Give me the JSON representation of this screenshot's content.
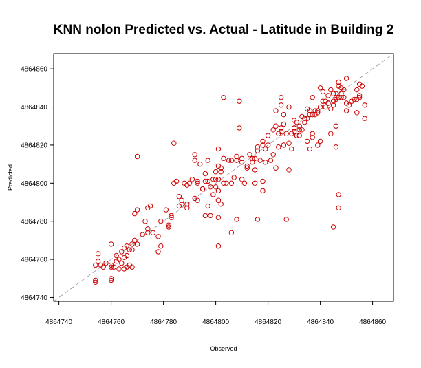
{
  "chart_data": {
    "type": "scatter",
    "title": "KNN  nolon Predicted vs. Actual - Latitude in Building 2",
    "xlabel": "Observed",
    "ylabel": "Predicted",
    "xlim": [
      4864738,
      4864868
    ],
    "ylim": [
      4864738,
      4864868
    ],
    "xticks": [
      4864740,
      4864760,
      4864780,
      4864800,
      4864820,
      4864840,
      4864860
    ],
    "yticks": [
      4864740,
      4864760,
      4864780,
      4864800,
      4864820,
      4864840,
      4864860
    ],
    "reference_line": "y = x",
    "grid": false,
    "marker": "open-circle",
    "point_color": "#cc0000",
    "line_color": "#9999aa",
    "points": [
      [
        4864754,
        4864749
      ],
      [
        4864754,
        4864748
      ],
      [
        4864754,
        4864757
      ],
      [
        4864755,
        4864759
      ],
      [
        4864755,
        4864763
      ],
      [
        4864756,
        4864757
      ],
      [
        4864757,
        4864756
      ],
      [
        4864758,
        4864758
      ],
      [
        4864760,
        4864750
      ],
      [
        4864760,
        4864749
      ],
      [
        4864760,
        4864757
      ],
      [
        4864760,
        4864756
      ],
      [
        4864760,
        4864768
      ],
      [
        4864761,
        4864756
      ],
      [
        4864762,
        4864759
      ],
      [
        4864762,
        4864762
      ],
      [
        4864763,
        4864755
      ],
      [
        4864763,
        4864760
      ],
      [
        4864764,
        4864764
      ],
      [
        4864764,
        4864758
      ],
      [
        4864765,
        4864766
      ],
      [
        4864765,
        4864761
      ],
      [
        4864765,
        4864755
      ],
      [
        4864766,
        4864767
      ],
      [
        4864766,
        4864762
      ],
      [
        4864766,
        4864756
      ],
      [
        4864767,
        4864765
      ],
      [
        4864767,
        4864757
      ],
      [
        4864768,
        4864768
      ],
      [
        4864768,
        4864765
      ],
      [
        4864768,
        4864756
      ],
      [
        4864769,
        4864770
      ],
      [
        4864769,
        4864784
      ],
      [
        4864770,
        4864786
      ],
      [
        4864770,
        4864768
      ],
      [
        4864770,
        4864814
      ],
      [
        4864772,
        4864773
      ],
      [
        4864773,
        4864780
      ],
      [
        4864774,
        4864787
      ],
      [
        4864774,
        4864776
      ],
      [
        4864774,
        4864774
      ],
      [
        4864775,
        4864788
      ],
      [
        4864776,
        4864774
      ],
      [
        4864778,
        4864764
      ],
      [
        4864778,
        4864772
      ],
      [
        4864779,
        4864767
      ],
      [
        4864779,
        4864780
      ],
      [
        4864781,
        4864786
      ],
      [
        4864782,
        4864777
      ],
      [
        4864782,
        4864778
      ],
      [
        4864783,
        4864782
      ],
      [
        4864783,
        4864783
      ],
      [
        4864784,
        4864800
      ],
      [
        4864784,
        4864821
      ],
      [
        4864785,
        4864801
      ],
      [
        4864786,
        4864788
      ],
      [
        4864786,
        4864793
      ],
      [
        4864787,
        4864791
      ],
      [
        4864787,
        4864789
      ],
      [
        4864788,
        4864800
      ],
      [
        4864789,
        4864787
      ],
      [
        4864789,
        4864789
      ],
      [
        4864789,
        4864799
      ],
      [
        4864790,
        4864800
      ],
      [
        4864791,
        4864802
      ],
      [
        4864792,
        4864792
      ],
      [
        4864792,
        4864812
      ],
      [
        4864792,
        4864815
      ],
      [
        4864793,
        4864801
      ],
      [
        4864793,
        4864800
      ],
      [
        4864793,
        4864791
      ],
      [
        4864794,
        4864810
      ],
      [
        4864795,
        4864797
      ],
      [
        4864795,
        4864797
      ],
      [
        4864796,
        4864805
      ],
      [
        4864796,
        4864801
      ],
      [
        4864796,
        4864783
      ],
      [
        4864797,
        4864812
      ],
      [
        4864797,
        4864788
      ],
      [
        4864797,
        4864801
      ],
      [
        4864798,
        4864783
      ],
      [
        4864798,
        4864798
      ],
      [
        4864799,
        4864794
      ],
      [
        4864799,
        4864802
      ],
      [
        4864800,
        4864806
      ],
      [
        4864800,
        4864798
      ],
      [
        4864800,
        4864802
      ],
      [
        4864801,
        4864796
      ],
      [
        4864801,
        4864818
      ],
      [
        4864801,
        4864809
      ],
      [
        4864801,
        4864802
      ],
      [
        4864801,
        4864791
      ],
      [
        4864801,
        4864767
      ],
      [
        4864801,
        4864782
      ],
      [
        4864802,
        4864808
      ],
      [
        4864802,
        4864806
      ],
      [
        4864802,
        4864789
      ],
      [
        4864803,
        4864845
      ],
      [
        4864803,
        4864800
      ],
      [
        4864803,
        4864813
      ],
      [
        4864804,
        4864800
      ],
      [
        4864805,
        4864812
      ],
      [
        4864806,
        4864774
      ],
      [
        4864806,
        4864812
      ],
      [
        4864806,
        4864800
      ],
      [
        4864807,
        4864803
      ],
      [
        4864808,
        4864781
      ],
      [
        4864808,
        4864812
      ],
      [
        4864808,
        4864814
      ],
      [
        4864809,
        4864843
      ],
      [
        4864809,
        4864829
      ],
      [
        4864810,
        4864811
      ],
      [
        4864810,
        4864802
      ],
      [
        4864810,
        4864813
      ],
      [
        4864811,
        4864800
      ],
      [
        4864812,
        4864808
      ],
      [
        4864812,
        4864809
      ],
      [
        4864813,
        4864815
      ],
      [
        4864814,
        4864811
      ],
      [
        4864814,
        4864813
      ],
      [
        4864815,
        4864800
      ],
      [
        4864815,
        4864813
      ],
      [
        4864815,
        4864807
      ],
      [
        4864816,
        4864817
      ],
      [
        4864816,
        4864781
      ],
      [
        4864816,
        4864819
      ],
      [
        4864817,
        4864812
      ],
      [
        4864818,
        4864820
      ],
      [
        4864818,
        4864822
      ],
      [
        4864818,
        4864796
      ],
      [
        4864818,
        4864801
      ],
      [
        4864819,
        4864811
      ],
      [
        4864819,
        4864818
      ],
      [
        4864820,
        4864820
      ],
      [
        4864820,
        4864825
      ],
      [
        4864821,
        4864812
      ],
      [
        4864822,
        4864828
      ],
      [
        4864822,
        4864815
      ],
      [
        4864823,
        4864830
      ],
      [
        4864823,
        4864808
      ],
      [
        4864823,
        4864838
      ],
      [
        4864824,
        4864826
      ],
      [
        4864824,
        4864819
      ],
      [
        4864825,
        4864845
      ],
      [
        4864825,
        4864841
      ],
      [
        4864825,
        4864829
      ],
      [
        4864825,
        4864827
      ],
      [
        4864826,
        4864836
      ],
      [
        4864826,
        4864831
      ],
      [
        4864826,
        4864820
      ],
      [
        4864827,
        4864781
      ],
      [
        4864827,
        4864826
      ],
      [
        4864828,
        4864821
      ],
      [
        4864828,
        4864840
      ],
      [
        4864828,
        4864807
      ],
      [
        4864829,
        4864818
      ],
      [
        4864829,
        4864826
      ],
      [
        4864830,
        4864833
      ],
      [
        4864830,
        4864827
      ],
      [
        4864830,
        4864829
      ],
      [
        4864831,
        4864832
      ],
      [
        4864831,
        4864825
      ],
      [
        4864832,
        4864828
      ],
      [
        4864832,
        4864825
      ],
      [
        4864832,
        4864830
      ],
      [
        4864833,
        4864835
      ],
      [
        4864833,
        4864828
      ],
      [
        4864834,
        4864832
      ],
      [
        4864834,
        4864834
      ],
      [
        4864835,
        4864834
      ],
      [
        4864835,
        4864822
      ],
      [
        4864835,
        4864839
      ],
      [
        4864836,
        4864836
      ],
      [
        4864836,
        4864818
      ],
      [
        4864836,
        4864838
      ],
      [
        4864837,
        4864836
      ],
      [
        4864837,
        4864826
      ],
      [
        4864837,
        4864824
      ],
      [
        4864837,
        4864845
      ],
      [
        4864838,
        4864836
      ],
      [
        4864838,
        4864838
      ],
      [
        4864839,
        4864838
      ],
      [
        4864839,
        4864837
      ],
      [
        4864839,
        4864820
      ],
      [
        4864840,
        4864840
      ],
      [
        4864840,
        4864850
      ],
      [
        4864840,
        4864822
      ],
      [
        4864841,
        4864848
      ],
      [
        4864841,
        4864843
      ],
      [
        4864842,
        4864840
      ],
      [
        4864842,
        4864843
      ],
      [
        4864843,
        4864842
      ],
      [
        4864843,
        4864846
      ],
      [
        4864843,
        4864842
      ],
      [
        4864844,
        4864826
      ],
      [
        4864844,
        4864849
      ],
      [
        4864844,
        4864839
      ],
      [
        4864845,
        4864777
      ],
      [
        4864845,
        4864841
      ],
      [
        4864845,
        4864847
      ],
      [
        4864845,
        4864843
      ],
      [
        4864846,
        4864844
      ],
      [
        4864846,
        4864819
      ],
      [
        4864846,
        4864830
      ],
      [
        4864846,
        4864845
      ],
      [
        4864846,
        4864847
      ],
      [
        4864847,
        4864853
      ],
      [
        4864847,
        4864845
      ],
      [
        4864847,
        4864851
      ],
      [
        4864847,
        4864794
      ],
      [
        4864847,
        4864787
      ],
      [
        4864848,
        4864850
      ],
      [
        4864848,
        4864847
      ],
      [
        4864848,
        4864845
      ],
      [
        4864849,
        4864849
      ],
      [
        4864849,
        4864845
      ],
      [
        4864850,
        4864855
      ],
      [
        4864850,
        4864838
      ],
      [
        4864850,
        4864842
      ],
      [
        4864851,
        4864841
      ],
      [
        4864852,
        4864843
      ],
      [
        4864853,
        4864844
      ],
      [
        4864854,
        4864844
      ],
      [
        4864854,
        4864849
      ],
      [
        4864854,
        4864837
      ],
      [
        4864855,
        4864845
      ],
      [
        4864855,
        4864852
      ],
      [
        4864855,
        4864846
      ],
      [
        4864856,
        4864851
      ],
      [
        4864857,
        4864834
      ],
      [
        4864857,
        4864841
      ]
    ]
  }
}
